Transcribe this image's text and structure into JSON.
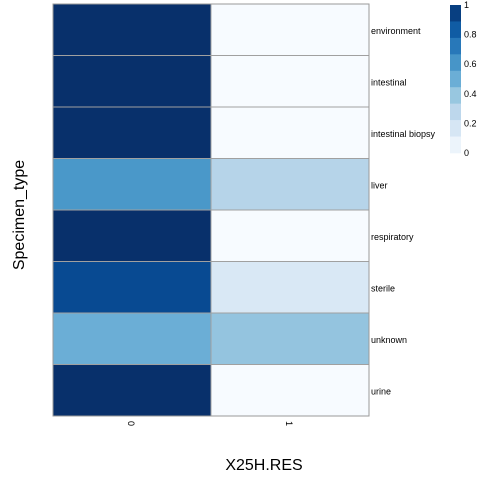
{
  "chart_data": {
    "type": "heatmap",
    "title": "",
    "xlabel": "X25H.RES",
    "ylabel": "Specimen_type",
    "x_categories": [
      "0",
      "1"
    ],
    "y_categories": [
      "environment",
      "intestinal",
      "intestinal biopsy",
      "liver",
      "respiratory",
      "sterile",
      "unknown",
      "urine"
    ],
    "values": [
      [
        1.0,
        0.0
      ],
      [
        1.0,
        0.0
      ],
      [
        1.0,
        0.0
      ],
      [
        0.6,
        0.3
      ],
      [
        1.0,
        0.0
      ],
      [
        0.9,
        0.15
      ],
      [
        0.5,
        0.4
      ],
      [
        1.0,
        0.0
      ]
    ],
    "colorbar": {
      "range": [
        0,
        1
      ],
      "ticks": [
        "0",
        "0.2",
        "0.4",
        "0.6",
        "0.8",
        "1"
      ],
      "colors": [
        "#F7FBFF",
        "#DEEBF7",
        "#C6DBEF",
        "#9ECAE1",
        "#6BAED6",
        "#4292C6",
        "#2171B5",
        "#08519C",
        "#08306B"
      ]
    },
    "legend_position": "top-right",
    "grid": false
  }
}
